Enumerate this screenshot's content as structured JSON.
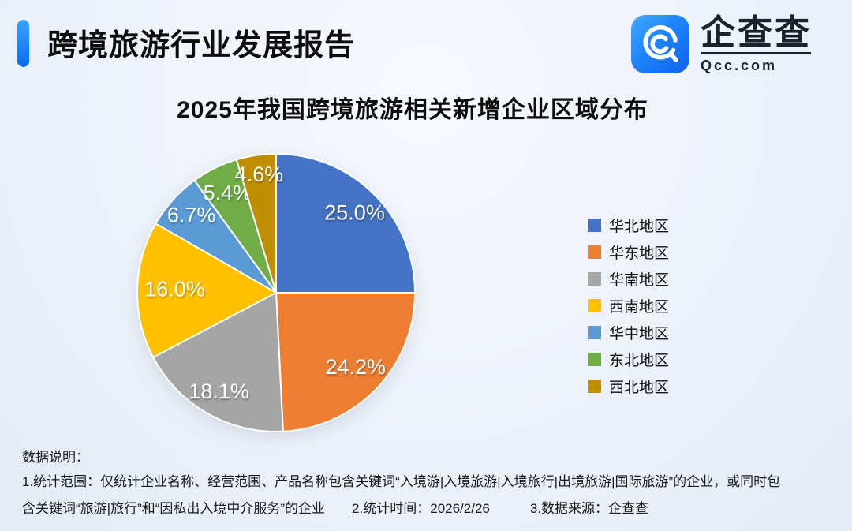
{
  "header": {
    "report_title": "跨境旅游行业发展报告",
    "logo": {
      "brand_name": "企查查",
      "brand_domain": "Qcc.com"
    }
  },
  "chart_data": {
    "type": "pie",
    "title": "2025年我国跨境旅游相关新增企业区域分布",
    "unit": "percent",
    "start_angle_deg": -90,
    "direction": "clockwise",
    "data_labels": "value with one decimal + %, white, inside slices",
    "legend_position": "right",
    "slices": [
      {
        "label": "华北地区",
        "value": 25.0,
        "color": "#4472C4"
      },
      {
        "label": "华东地区",
        "value": 24.2,
        "color": "#ED7D31"
      },
      {
        "label": "华南地区",
        "value": 18.1,
        "color": "#A5A5A5"
      },
      {
        "label": "西南地区",
        "value": 16.0,
        "color": "#FFC000"
      },
      {
        "label": "华中地区",
        "value": 6.7,
        "color": "#5B9BD5"
      },
      {
        "label": "东北地区",
        "value": 5.4,
        "color": "#70AD47"
      },
      {
        "label": "西北地区",
        "value": 4.6,
        "color": "#BF8F00"
      }
    ]
  },
  "footnotes": {
    "heading": "数据说明：",
    "line1": "1.统计范围：仅统计企业名称、经营范围、产品名称包含关键词“入境游|入境旅游|入境旅行|出境旅游|国际旅游”的企业，或同时包",
    "line2": "含关键词“旅游|旅行”和“因私出入境中介服务”的企业　　2.统计时间：2026/2/26　　　3.数据来源：企查查"
  },
  "colors": {
    "background": "#edf1f9",
    "accent_bar_top": "#36a4ff",
    "accent_bar_bottom": "#0b6bf0",
    "logo_gradient_start": "#41abff",
    "logo_gradient_end": "#0e62e8",
    "title_text": "#0d0d0d",
    "slice_border": "#ffffff"
  }
}
